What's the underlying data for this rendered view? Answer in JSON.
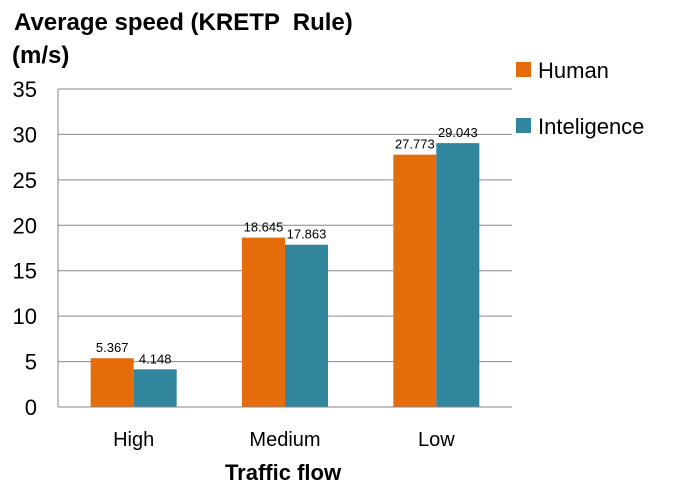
{
  "chart_data": {
    "type": "bar",
    "title": "Average speed (KRETP  Rule)",
    "ylabel": "(m/s)",
    "xlabel": "Traffic flow",
    "categories": [
      "High",
      "Medium",
      "Low"
    ],
    "series": [
      {
        "name": "Human",
        "values": [
          5.367,
          18.645,
          27.773
        ],
        "color": "#E46C0A"
      },
      {
        "name": "Inteligence",
        "values": [
          4.148,
          17.863,
          29.043
        ],
        "color": "#31859C"
      }
    ],
    "ylim": [
      0,
      35
    ],
    "yticks": [
      0,
      5,
      10,
      15,
      20,
      25,
      30,
      35
    ],
    "grid": true,
    "legend": "right",
    "data_labels": true
  }
}
